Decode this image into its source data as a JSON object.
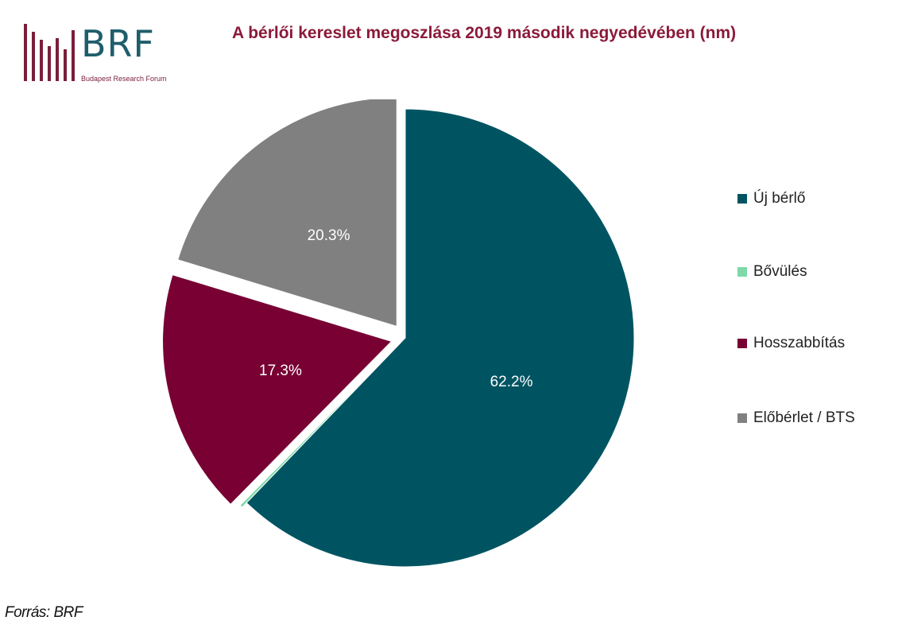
{
  "logo": {
    "text": "BRF",
    "subtitle": "Budapest Research Forum"
  },
  "title": "A bérlői kereslet megoszlása 2019 második negyedévében (nm)",
  "chart_data": {
    "type": "pie",
    "title": "A bérlői kereslet megoszlása 2019 második negyedévében (nm)",
    "legend_position": "right",
    "slices": [
      {
        "name": "Új bérlő",
        "value": 62.2,
        "label": "62.2%",
        "color": "#005462"
      },
      {
        "name": "Bővülés",
        "value": 0.2,
        "label": "",
        "color": "#7dd9a8"
      },
      {
        "name": "Hosszabbítás",
        "value": 17.3,
        "label": "17.3%",
        "color": "#780033"
      },
      {
        "name": "Előbérlet / BTS",
        "value": 20.3,
        "label": "20.3%",
        "color": "#808080"
      }
    ]
  },
  "source": "Forrás: BRF",
  "colors": {
    "title": "#8b1a3a",
    "logo_text": "#1f5d6c",
    "logo_bars": "#7a1f3a"
  }
}
